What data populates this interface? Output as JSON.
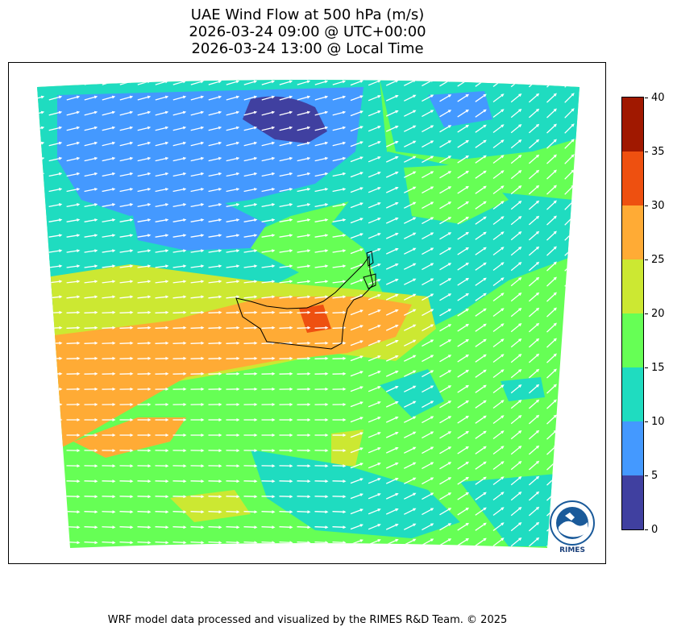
{
  "title": {
    "line1": "UAE Wind Flow at 500 hPa (m/s)",
    "line2": "2026-03-24 09:00 @ UTC+00:00",
    "line3": "2026-03-24 13:00 @ Local Time"
  },
  "colorbar": {
    "levels": [
      {
        "min": 0,
        "max": 5,
        "color": "#4040a0"
      },
      {
        "min": 5,
        "max": 10,
        "color": "#4499ff"
      },
      {
        "min": 10,
        "max": 15,
        "color": "#1fdcc0"
      },
      {
        "min": 15,
        "max": 20,
        "color": "#66ff55"
      },
      {
        "min": 20,
        "max": 25,
        "color": "#cce832"
      },
      {
        "min": 25,
        "max": 30,
        "color": "#ffab35"
      },
      {
        "min": 30,
        "max": 35,
        "color": "#ee5010"
      },
      {
        "min": 35,
        "max": 40,
        "color": "#a01800"
      }
    ],
    "tick_labels": [
      "0",
      "5",
      "10",
      "15",
      "20",
      "25",
      "30",
      "35",
      "40"
    ]
  },
  "logo": {
    "text": "RIMES"
  },
  "footer": "WRF model data processed and visualized by the RIMES R&D Team. © 2025"
}
